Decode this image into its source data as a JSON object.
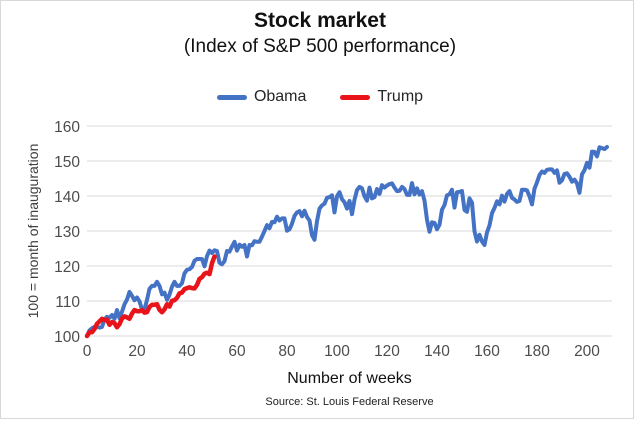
{
  "figure": {
    "title": "Stock market",
    "subtitle": "(Index of S&P 500 performance)",
    "x_axis_label": "Number of weeks",
    "y_axis_label": "100 = month of inauguration",
    "source": "Source: St. Louis Federal Reserve"
  },
  "legend": {
    "obama_label": "Obama",
    "trump_label": "Trump"
  },
  "colors": {
    "obama_blue": "#4472c4",
    "trump_red": "#e8141a",
    "gridline": "#d9d9d9",
    "tick_text": "#4d4d4d",
    "frame_border": "#d8d8d8"
  },
  "chart_data": {
    "type": "line",
    "title": "Stock market",
    "subtitle": "(Index of S&P 500 performance)",
    "xlabel": "Number of weeks",
    "ylabel": "100 = month of inauguration",
    "source": "Source: St. Louis Federal Reserve",
    "xlim": [
      0,
      210
    ],
    "ylim": [
      100,
      160
    ],
    "x_ticks": [
      0,
      20,
      40,
      60,
      80,
      100,
      120,
      140,
      160,
      180,
      200
    ],
    "y_ticks": [
      100,
      110,
      120,
      130,
      140,
      150,
      160
    ],
    "grid": true,
    "legend_position": "top",
    "x": "weeks since inauguration (weekly points starting at week 0)",
    "series": [
      {
        "name": "Obama",
        "color": "#4472c4",
        "values": [
          100,
          101.6,
          102.2,
          102.6,
          102.7,
          102.4,
          102.6,
          104.8,
          105.5,
          105.2,
          106.0,
          104.9,
          107.4,
          105.1,
          106.9,
          109.1,
          110.4,
          112.6,
          111.5,
          110.2,
          111.0,
          109.9,
          107.6,
          107.6,
          110.3,
          113.5,
          114.3,
          114.3,
          115.5,
          114.3,
          111.9,
          112.4,
          110.3,
          111.8,
          114.1,
          115.5,
          114.3,
          114.3,
          115.1,
          117.9,
          118.9,
          119.1,
          119.7,
          121.5,
          122.0,
          122.0,
          122.0,
          119.9,
          122.8,
          124.4,
          123.7,
          124.5,
          124.3,
          120.9,
          120.5,
          121.4,
          124.3,
          124.1,
          125.6,
          126.9,
          124.4,
          126.1,
          125.5,
          126.0,
          122.7,
          126.0,
          125.9,
          127.1,
          126.9,
          126.9,
          128.4,
          130.0,
          131.7,
          130.8,
          132.6,
          132.5,
          134.1,
          133.0,
          133.6,
          133.6,
          130.1,
          130.5,
          132.1,
          134.3,
          135.3,
          135.7,
          134.2,
          135.8,
          134.0,
          133.0,
          128.8,
          127.5,
          132.8,
          136.4,
          137.3,
          137.8,
          139.5,
          139.7,
          140.2,
          135.3,
          139.9,
          141.1,
          139.1,
          138.2,
          136.4,
          138.6,
          134.8,
          138.9,
          141.7,
          142.6,
          142.2,
          139.9,
          138.7,
          142.4,
          139.3,
          139.7,
          142.0,
          140.6,
          143.1,
          142.4,
          143.0,
          143.4,
          143.6,
          142.4,
          141.4,
          141.5,
          142.6,
          142.0,
          140.3,
          140.3,
          143.7,
          140.5,
          142.2,
          140.4,
          141.4,
          138.7,
          133.2,
          129.8,
          132.5,
          132.3,
          130.5,
          131.8,
          136.1,
          137.4,
          140.2,
          140.5,
          141.8,
          136.7,
          141.1,
          141.2,
          141.4,
          136.0,
          135.5,
          139.3,
          138.1,
          129.9,
          127.0,
          128.9,
          127.0,
          126.0,
          129.6,
          131.6,
          135.1,
          136.6,
          138.5,
          137.6,
          140.1,
          138.4,
          140.6,
          141.4,
          139.5,
          139.0,
          138.3,
          138.6,
          141.8,
          141.8,
          141.6,
          139.9,
          137.6,
          142.1,
          143.9,
          146.0,
          147.0,
          146.6,
          147.5,
          147.6,
          147.6,
          146.6,
          147.3,
          143.8,
          144.5,
          146.3,
          146.5,
          145.5,
          144.1,
          144.7,
          143.6,
          140.9,
          146.2,
          147.4,
          149.5,
          148.1,
          152.7,
          152.6,
          151.3,
          153.9,
          153.7,
          153.4,
          154.0
        ]
      },
      {
        "name": "Trump",
        "color": "#e8141a",
        "values": [
          100,
          101.1,
          101.1,
          102.0,
          103.5,
          104.2,
          104.9,
          104.5,
          104.7,
          103.2,
          104.0,
          103.7,
          102.5,
          103.4,
          105.0,
          105.6,
          105.3,
          104.9,
          106.4,
          107.4,
          107.1,
          107.1,
          107.4,
          106.7,
          106.8,
          108.3,
          108.9,
          108.9,
          109.1,
          107.5,
          106.8,
          107.6,
          109.1,
          108.4,
          110.1,
          110.2,
          110.9,
          112.2,
          112.4,
          113.4,
          113.7,
          113.9,
          113.7,
          113.6,
          114.6,
          116.3,
          116.8,
          117.8,
          118.1,
          117.7,
          120.8,
          122.7
        ]
      }
    ]
  }
}
